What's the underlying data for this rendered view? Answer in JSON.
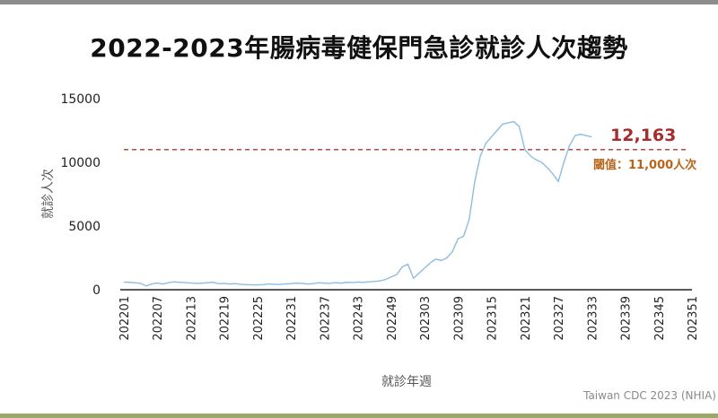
{
  "title": "2022-2023年腸病毒健保門急診就診人次趨勢",
  "credit": "Taiwan CDC 2023 (NHIA)",
  "colors": {
    "line": "#8fbde0",
    "threshold": "#a33a3a",
    "callout_value": "#a62d2d",
    "callout_label": "#b8651c",
    "axis": "#222222",
    "tick_text": "#222222",
    "axis_title": "#555555"
  },
  "chart_data": {
    "type": "line",
    "title": "2022-2023年腸病毒健保門急診就診人次趨勢",
    "xlabel": "就診年週",
    "ylabel": "就診人次",
    "ylim": [
      0,
      15000
    ],
    "yticks": [
      0,
      5000,
      10000,
      15000
    ],
    "xticks": [
      "202201",
      "202207",
      "202213",
      "202219",
      "202225",
      "202231",
      "202237",
      "202243",
      "202249",
      "202303",
      "202309",
      "202315",
      "202321",
      "202327",
      "202333",
      "202339",
      "202345",
      "202351"
    ],
    "grid": false,
    "series": [
      {
        "x": [
          "202201",
          "202202",
          "202203",
          "202204",
          "202205",
          "202206",
          "202207",
          "202208",
          "202209",
          "202210",
          "202211",
          "202212",
          "202213",
          "202214",
          "202215",
          "202216",
          "202217",
          "202218",
          "202219",
          "202220",
          "202221",
          "202222",
          "202223",
          "202224",
          "202225",
          "202226",
          "202227",
          "202228",
          "202229",
          "202230",
          "202231",
          "202232",
          "202233",
          "202234",
          "202235",
          "202236",
          "202237",
          "202238",
          "202239",
          "202240",
          "202241",
          "202242",
          "202243",
          "202244",
          "202245",
          "202246",
          "202247",
          "202248",
          "202249",
          "202250",
          "202251",
          "202252",
          "202301",
          "202302",
          "202303",
          "202304",
          "202305",
          "202306",
          "202307",
          "202308",
          "202309",
          "202310",
          "202311",
          "202312",
          "202313",
          "202314",
          "202315",
          "202316",
          "202317",
          "202318",
          "202319",
          "202320",
          "202321",
          "202322",
          "202323",
          "202324",
          "202325",
          "202326",
          "202327",
          "202328",
          "202329",
          "202330",
          "202331",
          "202332",
          "202333",
          "202334",
          "202335"
        ],
        "values": [
          600,
          580,
          550,
          500,
          300,
          450,
          520,
          450,
          550,
          620,
          580,
          560,
          530,
          500,
          520,
          550,
          580,
          480,
          500,
          450,
          480,
          420,
          400,
          380,
          380,
          400,
          450,
          430,
          420,
          450,
          480,
          520,
          500,
          450,
          480,
          550,
          520,
          500,
          560,
          520,
          580,
          560,
          600,
          580,
          620,
          650,
          700,
          800,
          1000,
          1200,
          1800,
          2000,
          900,
          1300,
          1700,
          2100,
          2400,
          2300,
          2500,
          3000,
          4000,
          4200,
          5500,
          8500,
          10500,
          11500,
          12000,
          12500,
          13000,
          13100,
          13200,
          12800,
          11000,
          10500,
          10200,
          10000,
          9600,
          9100,
          8500,
          10000,
          11300,
          12100,
          12200,
          12100,
          12000,
          null,
          null
        ]
      }
    ],
    "threshold": {
      "value": 11000,
      "label": "閾值：11,000人次"
    },
    "annotations": [
      {
        "text": "12,163",
        "x": "202334",
        "y": 12163
      }
    ]
  }
}
